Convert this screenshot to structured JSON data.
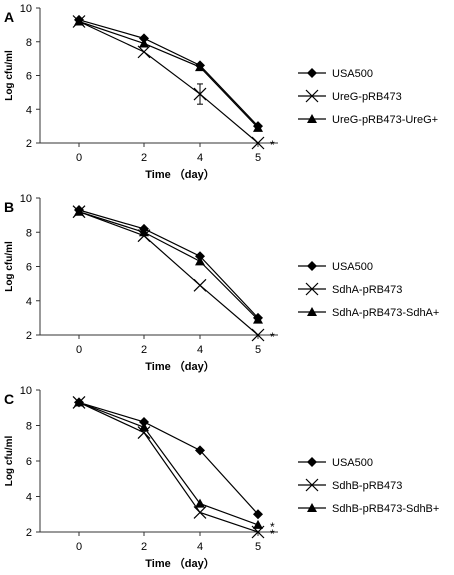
{
  "chart_data": [
    {
      "panel": "A",
      "type": "line",
      "x": [
        0,
        2,
        4,
        5
      ],
      "xlabel": "Time （day）",
      "ylabel": "Log cfu/ml",
      "ylim": [
        2,
        10
      ],
      "yticks": [
        2,
        4,
        6,
        8,
        10
      ],
      "grid": false,
      "legend": "right",
      "annotations": [
        "*"
      ],
      "series": [
        {
          "name": "USA500",
          "values": [
            9.3,
            8.2,
            6.6,
            3.0
          ],
          "marker": "diamond"
        },
        {
          "name": "UreG-pRB473",
          "values": [
            9.2,
            7.4,
            4.9,
            2.0
          ],
          "marker": "x",
          "errors": [
            0,
            0,
            0.6,
            0
          ]
        },
        {
          "name": "UreG-pRB473-UreG+",
          "values": [
            9.2,
            7.9,
            6.5,
            2.9
          ],
          "marker": "triangle"
        }
      ]
    },
    {
      "panel": "B",
      "type": "line",
      "x": [
        0,
        2,
        4,
        5
      ],
      "xlabel": "Time （day）",
      "ylabel": "Log cfu/ml",
      "ylim": [
        2,
        10
      ],
      "yticks": [
        2,
        4,
        6,
        8,
        10
      ],
      "grid": false,
      "legend": "right",
      "annotations": [
        "*"
      ],
      "series": [
        {
          "name": "USA500",
          "values": [
            9.3,
            8.2,
            6.6,
            3.0
          ],
          "marker": "diamond"
        },
        {
          "name": "SdhA-pRB473",
          "values": [
            9.2,
            7.8,
            4.9,
            2.0
          ],
          "marker": "x"
        },
        {
          "name": "SdhA-pRB473-SdhA+",
          "values": [
            9.2,
            8.0,
            6.3,
            2.9
          ],
          "marker": "triangle"
        }
      ]
    },
    {
      "panel": "C",
      "type": "line",
      "x": [
        0,
        2,
        4,
        5
      ],
      "xlabel": "Time （day）",
      "ylabel": "Log cfu/ml",
      "ylim": [
        2,
        10
      ],
      "yticks": [
        2,
        4,
        6,
        8,
        10
      ],
      "grid": false,
      "legend": "right",
      "annotations": [
        "*",
        "*"
      ],
      "series": [
        {
          "name": "USA500",
          "values": [
            9.3,
            8.2,
            6.6,
            3.0
          ],
          "marker": "diamond"
        },
        {
          "name": "SdhB-pRB473",
          "values": [
            9.3,
            7.6,
            3.1,
            2.0
          ],
          "marker": "x"
        },
        {
          "name": "SdhB-pRB473-SdhB+",
          "values": [
            9.3,
            7.9,
            3.6,
            2.4
          ],
          "marker": "triangle"
        }
      ]
    }
  ]
}
